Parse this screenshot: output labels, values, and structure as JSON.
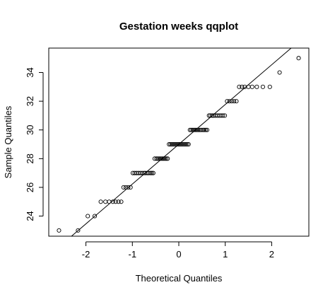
{
  "chart_data": {
    "type": "scatter",
    "title": "Gestation weeks qqplot",
    "xlabel": "Theoretical Quantiles",
    "ylabel": "Sample Quantiles",
    "xlim": [
      -2.8,
      2.8
    ],
    "ylim": [
      22.6,
      35.7
    ],
    "x_ticks": [
      -2,
      -1,
      0,
      1,
      2
    ],
    "x_tick_labels": [
      "-2",
      "-1",
      "0",
      "1",
      "2"
    ],
    "y_ticks": [
      24,
      26,
      28,
      30,
      32,
      34
    ],
    "y_tick_labels": [
      "24",
      "26",
      "28",
      "30",
      "32",
      "34"
    ],
    "grid": false,
    "reference_line": {
      "slope": 2.77,
      "intercept": 29.0
    },
    "points": [
      {
        "x": -2.58,
        "y": 23
      },
      {
        "x": -2.17,
        "y": 23
      },
      {
        "x": -1.96,
        "y": 24
      },
      {
        "x": -1.81,
        "y": 24
      },
      {
        "x": -1.68,
        "y": 25
      },
      {
        "x": -1.58,
        "y": 25
      },
      {
        "x": -1.5,
        "y": 25
      },
      {
        "x": -1.42,
        "y": 25
      },
      {
        "x": -1.36,
        "y": 25
      },
      {
        "x": -1.3,
        "y": 25
      },
      {
        "x": -1.24,
        "y": 25
      },
      {
        "x": -1.19,
        "y": 26
      },
      {
        "x": -1.14,
        "y": 26
      },
      {
        "x": -1.09,
        "y": 26
      },
      {
        "x": -1.04,
        "y": 26
      },
      {
        "x": -0.99,
        "y": 27
      },
      {
        "x": -0.95,
        "y": 27
      },
      {
        "x": -0.91,
        "y": 27
      },
      {
        "x": -0.87,
        "y": 27
      },
      {
        "x": -0.83,
        "y": 27
      },
      {
        "x": -0.79,
        "y": 27
      },
      {
        "x": -0.75,
        "y": 27
      },
      {
        "x": -0.72,
        "y": 27
      },
      {
        "x": -0.68,
        "y": 27
      },
      {
        "x": -0.65,
        "y": 27
      },
      {
        "x": -0.61,
        "y": 27
      },
      {
        "x": -0.58,
        "y": 27
      },
      {
        "x": -0.55,
        "y": 27
      },
      {
        "x": -0.52,
        "y": 28
      },
      {
        "x": -0.48,
        "y": 28
      },
      {
        "x": -0.45,
        "y": 28
      },
      {
        "x": -0.42,
        "y": 28
      },
      {
        "x": -0.39,
        "y": 28
      },
      {
        "x": -0.36,
        "y": 28
      },
      {
        "x": -0.33,
        "y": 28
      },
      {
        "x": -0.3,
        "y": 28
      },
      {
        "x": -0.27,
        "y": 28
      },
      {
        "x": -0.24,
        "y": 28
      },
      {
        "x": -0.21,
        "y": 29
      },
      {
        "x": -0.18,
        "y": 29
      },
      {
        "x": -0.15,
        "y": 29
      },
      {
        "x": -0.12,
        "y": 29
      },
      {
        "x": -0.09,
        "y": 29
      },
      {
        "x": -0.06,
        "y": 29
      },
      {
        "x": -0.03,
        "y": 29
      },
      {
        "x": 0.0,
        "y": 29
      },
      {
        "x": 0.03,
        "y": 29
      },
      {
        "x": 0.06,
        "y": 29
      },
      {
        "x": 0.09,
        "y": 29
      },
      {
        "x": 0.12,
        "y": 29
      },
      {
        "x": 0.15,
        "y": 29
      },
      {
        "x": 0.18,
        "y": 29
      },
      {
        "x": 0.21,
        "y": 29
      },
      {
        "x": 0.24,
        "y": 30
      },
      {
        "x": 0.27,
        "y": 30
      },
      {
        "x": 0.3,
        "y": 30
      },
      {
        "x": 0.33,
        "y": 30
      },
      {
        "x": 0.36,
        "y": 30
      },
      {
        "x": 0.39,
        "y": 30
      },
      {
        "x": 0.42,
        "y": 30
      },
      {
        "x": 0.45,
        "y": 30
      },
      {
        "x": 0.48,
        "y": 30
      },
      {
        "x": 0.52,
        "y": 30
      },
      {
        "x": 0.55,
        "y": 30
      },
      {
        "x": 0.58,
        "y": 30
      },
      {
        "x": 0.61,
        "y": 30
      },
      {
        "x": 0.65,
        "y": 31
      },
      {
        "x": 0.68,
        "y": 31
      },
      {
        "x": 0.72,
        "y": 31
      },
      {
        "x": 0.75,
        "y": 31
      },
      {
        "x": 0.79,
        "y": 31
      },
      {
        "x": 0.83,
        "y": 31
      },
      {
        "x": 0.87,
        "y": 31
      },
      {
        "x": 0.91,
        "y": 31
      },
      {
        "x": 0.95,
        "y": 31
      },
      {
        "x": 0.99,
        "y": 31
      },
      {
        "x": 1.04,
        "y": 32
      },
      {
        "x": 1.09,
        "y": 32
      },
      {
        "x": 1.14,
        "y": 32
      },
      {
        "x": 1.19,
        "y": 32
      },
      {
        "x": 1.24,
        "y": 32
      },
      {
        "x": 1.3,
        "y": 33
      },
      {
        "x": 1.36,
        "y": 33
      },
      {
        "x": 1.42,
        "y": 33
      },
      {
        "x": 1.5,
        "y": 33
      },
      {
        "x": 1.58,
        "y": 33
      },
      {
        "x": 1.68,
        "y": 33
      },
      {
        "x": 1.81,
        "y": 33
      },
      {
        "x": 1.96,
        "y": 33
      },
      {
        "x": 2.17,
        "y": 34
      },
      {
        "x": 2.58,
        "y": 35
      }
    ]
  }
}
